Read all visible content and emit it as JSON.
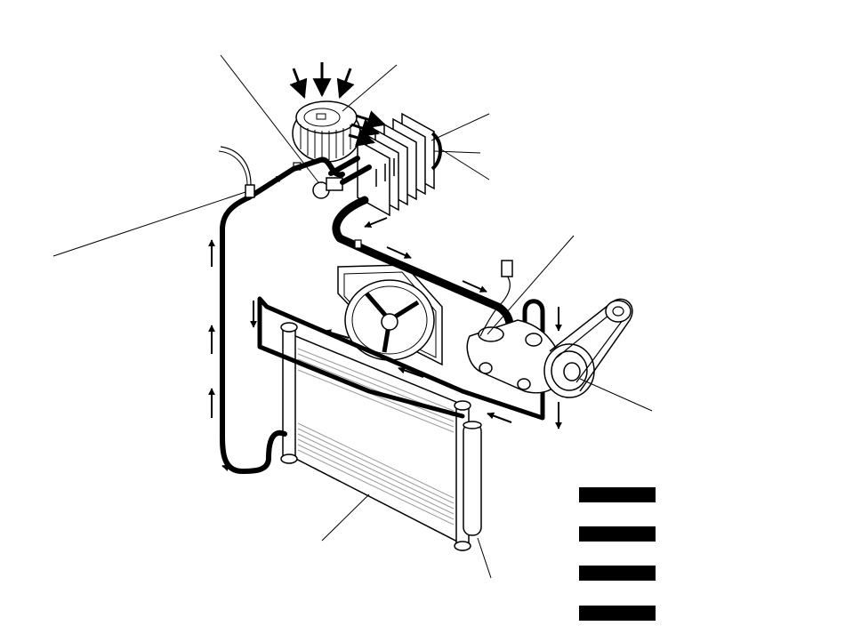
{
  "diagram": {
    "colors": {
      "ink": "#000000",
      "paper": "#ffffff",
      "hatch": "#c8c8c8"
    },
    "legend": {
      "swatches": 4
    },
    "callout_leaders": 9
  }
}
